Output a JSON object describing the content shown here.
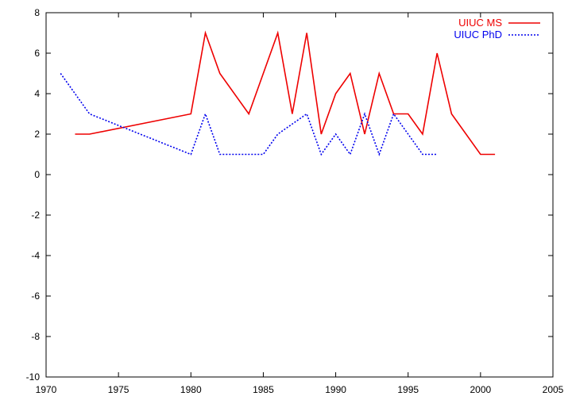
{
  "chart_data": {
    "type": "line",
    "title": "",
    "xlabel": "",
    "ylabel": "",
    "xlim": [
      1970,
      2005
    ],
    "ylim": [
      -10,
      8
    ],
    "xticks": [
      1970,
      1975,
      1980,
      1985,
      1990,
      1995,
      2000,
      2005
    ],
    "yticks": [
      -10,
      -8,
      -6,
      -4,
      -2,
      0,
      2,
      4,
      6,
      8
    ],
    "grid": false,
    "legend_position": "top-right",
    "series": [
      {
        "name": "UIUC MS",
        "color": "#ee0000",
        "style": "solid",
        "points": [
          [
            1972,
            2
          ],
          [
            1973,
            2
          ],
          [
            1980,
            3
          ],
          [
            1981,
            7
          ],
          [
            1982,
            5
          ],
          [
            1984,
            3
          ],
          [
            1986,
            7
          ],
          [
            1987,
            3
          ],
          [
            1988,
            7
          ],
          [
            1989,
            2
          ],
          [
            1990,
            4
          ],
          [
            1991,
            5
          ],
          [
            1992,
            2
          ],
          [
            1993,
            5
          ],
          [
            1994,
            3
          ],
          [
            1995,
            3
          ],
          [
            1996,
            2
          ],
          [
            1997,
            6
          ],
          [
            1998,
            3
          ],
          [
            2000,
            1
          ],
          [
            2001,
            1
          ]
        ]
      },
      {
        "name": "UIUC PhD",
        "color": "#0000ee",
        "style": "dotted",
        "points": [
          [
            1971,
            5
          ],
          [
            1973,
            3
          ],
          [
            1980,
            1
          ],
          [
            1981,
            3
          ],
          [
            1982,
            1
          ],
          [
            1985,
            1
          ],
          [
            1986,
            2
          ],
          [
            1988,
            3
          ],
          [
            1989,
            1
          ],
          [
            1990,
            2
          ],
          [
            1991,
            1
          ],
          [
            1992,
            3
          ],
          [
            1993,
            1
          ],
          [
            1994,
            3
          ],
          [
            1996,
            1
          ],
          [
            1997,
            1
          ]
        ]
      }
    ]
  }
}
